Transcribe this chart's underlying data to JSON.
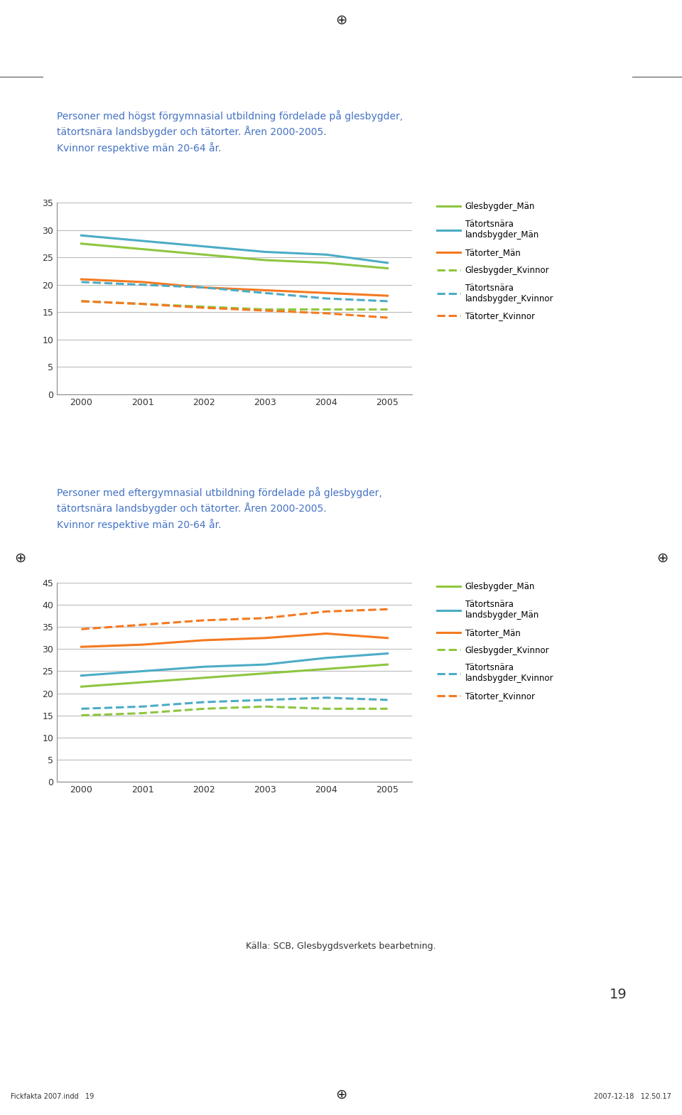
{
  "title1": "Personer med högst förgymnasial utbildning fördelade på glesbygder,\ntätortsnära landsbygder och tätorter. Åren 2000-2005.\nKvinnor respektive män 20-64 år.",
  "title2": "Personer med eftergymnasial utbildning fördelade på glesbygder,\ntätortsnära landsbygder och tätorter. Åren 2000-2005.\nKvinnor respektive män 20-64 år.",
  "years": [
    2000,
    2001,
    2002,
    2003,
    2004,
    2005
  ],
  "chart1": {
    "glesbygder_man": [
      27.5,
      26.5,
      25.5,
      24.5,
      24.0,
      23.0
    ],
    "tatortsnara_man": [
      29.0,
      28.0,
      27.0,
      26.0,
      25.5,
      24.0
    ],
    "tatorter_man": [
      21.0,
      20.5,
      19.5,
      19.0,
      18.5,
      18.0
    ],
    "glesbygder_kvinna": [
      17.0,
      16.5,
      16.0,
      15.5,
      15.5,
      15.5
    ],
    "tatortsnara_kvinna": [
      20.5,
      20.0,
      19.5,
      18.5,
      17.5,
      17.0
    ],
    "tatorter_kvinna": [
      17.0,
      16.5,
      15.8,
      15.3,
      14.8,
      14.0
    ],
    "ylim": [
      0,
      35
    ],
    "yticks": [
      0,
      5,
      10,
      15,
      20,
      25,
      30,
      35
    ]
  },
  "chart2": {
    "glesbygder_man": [
      21.5,
      22.5,
      23.5,
      24.5,
      25.5,
      26.5
    ],
    "tatortsnara_man": [
      24.0,
      25.0,
      26.0,
      26.5,
      28.0,
      29.0
    ],
    "tatorter_man": [
      30.5,
      31.0,
      32.0,
      32.5,
      33.5,
      32.5
    ],
    "glesbygder_kvinna": [
      15.0,
      15.5,
      16.5,
      17.0,
      16.5,
      16.5
    ],
    "tatortsnara_kvinna": [
      16.5,
      17.0,
      18.0,
      18.5,
      19.0,
      18.5
    ],
    "tatorter_kvinna": [
      34.5,
      35.5,
      36.5,
      37.0,
      38.5,
      39.0
    ],
    "ylim": [
      0,
      45
    ],
    "yticks": [
      0,
      5,
      10,
      15,
      20,
      25,
      30,
      35,
      40,
      45
    ]
  },
  "colors": {
    "glesbygder": "#8dc63f",
    "tatortsnara": "#4bacc6",
    "tatorter": "#f47920"
  },
  "title_color": "#4472c4",
  "source": "Källa: SCB, Glesbygdsverkets bearbetning.",
  "page": "19",
  "footer_left": "Fickfakta 2007.indd   19",
  "footer_right": "2007-12-18   12.50.17",
  "background": "#ffffff",
  "axis_color": "#888888",
  "grid_color": "#bbbbbb",
  "tick_color": "#333333"
}
